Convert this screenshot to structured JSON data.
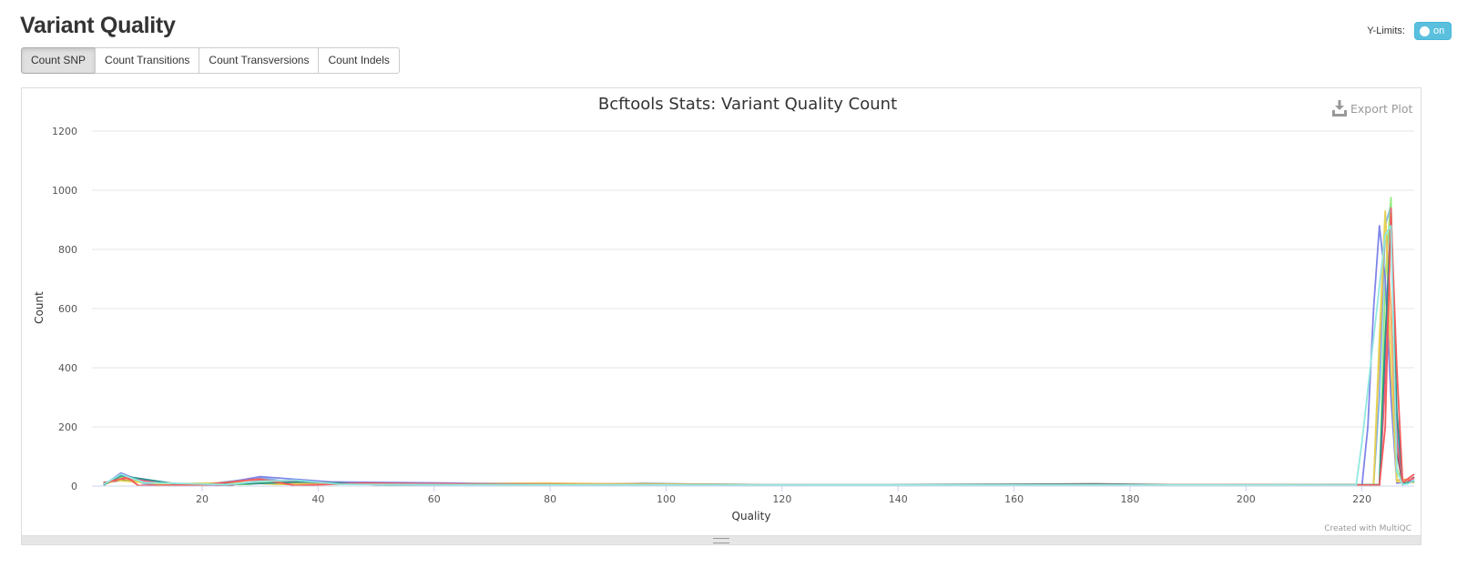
{
  "page": {
    "title": "Variant Quality"
  },
  "ylimits": {
    "label": "Y-Limits:",
    "state": "on"
  },
  "tabs": [
    {
      "label": "Count SNP",
      "active": true
    },
    {
      "label": "Count Transitions",
      "active": false
    },
    {
      "label": "Count Transversions",
      "active": false
    },
    {
      "label": "Count Indels",
      "active": false
    }
  ],
  "plot": {
    "export_label": "Export Plot",
    "credit": "Created with MultiQC"
  },
  "colors": {
    "toggle": "#5bc0de",
    "grid": "#e6e6e6"
  },
  "chart_data": {
    "type": "line",
    "title": "Bcftools Stats: Variant Quality Count",
    "xlabel": "Quality",
    "ylabel": "Count",
    "xlim": [
      1,
      229
    ],
    "ylim": [
      0,
      1200
    ],
    "xticks": [
      20,
      40,
      60,
      80,
      100,
      120,
      140,
      160,
      180,
      200,
      220
    ],
    "yticks": [
      0,
      200,
      400,
      600,
      800,
      1000,
      1200
    ],
    "grid": true,
    "series": [
      {
        "color": "#7cb5ec",
        "points": [
          [
            3,
            5
          ],
          [
            6,
            38
          ],
          [
            10,
            8
          ],
          [
            20,
            5
          ],
          [
            30,
            28
          ],
          [
            36,
            12
          ],
          [
            42,
            10
          ],
          [
            60,
            6
          ],
          [
            80,
            8
          ],
          [
            100,
            3
          ],
          [
            150,
            3
          ],
          [
            200,
            3
          ],
          [
            222,
            3
          ],
          [
            223,
            300
          ],
          [
            224,
            880
          ],
          [
            225,
            950
          ],
          [
            226,
            200
          ],
          [
            227,
            8
          ],
          [
            229,
            20
          ]
        ]
      },
      {
        "color": "#434348",
        "points": [
          [
            3,
            12
          ],
          [
            7,
            22
          ],
          [
            15,
            6
          ],
          [
            25,
            4
          ],
          [
            30,
            18
          ],
          [
            50,
            5
          ],
          [
            70,
            5
          ],
          [
            96,
            8
          ],
          [
            120,
            4
          ],
          [
            174,
            7
          ],
          [
            200,
            3
          ],
          [
            223,
            3
          ],
          [
            224,
            400
          ],
          [
            225,
            900
          ],
          [
            226,
            120
          ],
          [
            227,
            5
          ],
          [
            229,
            30
          ]
        ]
      },
      {
        "color": "#90ed7d",
        "points": [
          [
            3,
            4
          ],
          [
            6,
            30
          ],
          [
            12,
            6
          ],
          [
            28,
            6
          ],
          [
            31,
            14
          ],
          [
            48,
            6
          ],
          [
            66,
            6
          ],
          [
            90,
            5
          ],
          [
            130,
            4
          ],
          [
            180,
            5
          ],
          [
            210,
            4
          ],
          [
            223,
            5
          ],
          [
            224,
            700
          ],
          [
            225,
            975
          ],
          [
            226,
            60
          ],
          [
            227,
            6
          ],
          [
            229,
            15
          ]
        ]
      },
      {
        "color": "#f7a35c",
        "points": [
          [
            3,
            6
          ],
          [
            6,
            25
          ],
          [
            18,
            4
          ],
          [
            28,
            10
          ],
          [
            32,
            8
          ],
          [
            58,
            7
          ],
          [
            79,
            10
          ],
          [
            110,
            4
          ],
          [
            160,
            4
          ],
          [
            205,
            4
          ],
          [
            222,
            5
          ],
          [
            223,
            450
          ],
          [
            224,
            920
          ],
          [
            225,
            600
          ],
          [
            226,
            20
          ],
          [
            229,
            25
          ]
        ]
      },
      {
        "color": "#8085e9",
        "points": [
          [
            3,
            3
          ],
          [
            6,
            44
          ],
          [
            11,
            6
          ],
          [
            22,
            4
          ],
          [
            30,
            32
          ],
          [
            42,
            14
          ],
          [
            64,
            10
          ],
          [
            95,
            4
          ],
          [
            140,
            4
          ],
          [
            190,
            4
          ],
          [
            220,
            4
          ],
          [
            221,
            200
          ],
          [
            222,
            600
          ],
          [
            223,
            880
          ],
          [
            224,
            700
          ],
          [
            225,
            300
          ],
          [
            226,
            10
          ],
          [
            229,
            18
          ]
        ]
      },
      {
        "color": "#f15c80",
        "points": [
          [
            3,
            8
          ],
          [
            7,
            28
          ],
          [
            14,
            5
          ],
          [
            25,
            5
          ],
          [
            31,
            20
          ],
          [
            46,
            8
          ],
          [
            62,
            8
          ],
          [
            84,
            6
          ],
          [
            108,
            5
          ],
          [
            150,
            5
          ],
          [
            196,
            4
          ],
          [
            223,
            4
          ],
          [
            224,
            350
          ],
          [
            225,
            940
          ],
          [
            226,
            150
          ],
          [
            227,
            6
          ],
          [
            229,
            28
          ]
        ]
      },
      {
        "color": "#e4d354",
        "points": [
          [
            3,
            5
          ],
          [
            5,
            20
          ],
          [
            13,
            7
          ],
          [
            27,
            12
          ],
          [
            33,
            6
          ],
          [
            56,
            6
          ],
          [
            78,
            8
          ],
          [
            118,
            5
          ],
          [
            172,
            5
          ],
          [
            208,
            5
          ],
          [
            222,
            4
          ],
          [
            223,
            500
          ],
          [
            224,
            930
          ],
          [
            225,
            400
          ],
          [
            226,
            15
          ],
          [
            229,
            12
          ]
        ]
      },
      {
        "color": "#2b908f",
        "points": [
          [
            3,
            4
          ],
          [
            6,
            35
          ],
          [
            16,
            6
          ],
          [
            29,
            8
          ],
          [
            37,
            14
          ],
          [
            52,
            5
          ],
          [
            72,
            6
          ],
          [
            102,
            4
          ],
          [
            146,
            4
          ],
          [
            186,
            4
          ],
          [
            223,
            4
          ],
          [
            224,
            500
          ],
          [
            225,
            900
          ],
          [
            226,
            250
          ],
          [
            227,
            8
          ],
          [
            229,
            16
          ]
        ]
      },
      {
        "color": "#f45b5b",
        "points": [
          [
            3,
            10
          ],
          [
            7,
            30
          ],
          [
            9,
            2
          ],
          [
            20,
            4
          ],
          [
            30,
            24
          ],
          [
            36,
            2
          ],
          [
            48,
            10
          ],
          [
            68,
            6
          ],
          [
            88,
            5
          ],
          [
            124,
            4
          ],
          [
            164,
            4
          ],
          [
            202,
            4
          ],
          [
            223,
            3
          ],
          [
            224,
            200
          ],
          [
            225,
            920
          ],
          [
            226,
            400
          ],
          [
            227,
            12
          ],
          [
            229,
            40
          ]
        ]
      },
      {
        "color": "#91e8e1",
        "points": [
          [
            3,
            6
          ],
          [
            6,
            40
          ],
          [
            10,
            12
          ],
          [
            24,
            5
          ],
          [
            30,
            16
          ],
          [
            36,
            20
          ],
          [
            44,
            6
          ],
          [
            70,
            4
          ],
          [
            98,
            4
          ],
          [
            128,
            4
          ],
          [
            176,
            4
          ],
          [
            214,
            3
          ],
          [
            219,
            3
          ],
          [
            220,
            150
          ],
          [
            222,
            500
          ],
          [
            224,
            850
          ],
          [
            225,
            880
          ],
          [
            226,
            50
          ],
          [
            227,
            5
          ],
          [
            228,
            8
          ],
          [
            229,
            20
          ]
        ]
      }
    ]
  }
}
